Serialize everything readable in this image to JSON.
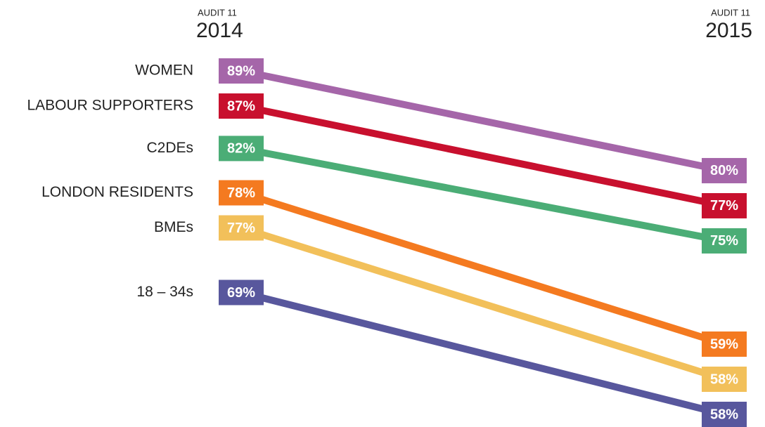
{
  "chart_data": {
    "type": "slope",
    "x": [
      "2014",
      "2015"
    ],
    "x_sublabels": [
      "AUDIT 11",
      "AUDIT 11"
    ],
    "series": [
      {
        "name": "WOMEN",
        "color": "#a566a9",
        "values": [
          89,
          80
        ],
        "value_labels": [
          "89%",
          "80%"
        ]
      },
      {
        "name": "LABOUR SUPPORTERS",
        "color": "#c8102e",
        "values": [
          87,
          77
        ],
        "value_labels": [
          "87%",
          "77%"
        ]
      },
      {
        "name": "C2DEs",
        "color": "#4bad76",
        "values": [
          82,
          75
        ],
        "value_labels": [
          "82%",
          "75%"
        ]
      },
      {
        "name": "LONDON RESIDENTS",
        "color": "#f47a20",
        "values": [
          78,
          59
        ],
        "value_labels": [
          "78%",
          "59%"
        ]
      },
      {
        "name": "BMEs",
        "color": "#f2c05a",
        "values": [
          77,
          58
        ],
        "value_labels": [
          "77%",
          "58%"
        ]
      },
      {
        "name": "18 – 34s",
        "color": "#58579d",
        "values": [
          69,
          58
        ],
        "value_labels": [
          "69%",
          "58%"
        ]
      }
    ]
  }
}
